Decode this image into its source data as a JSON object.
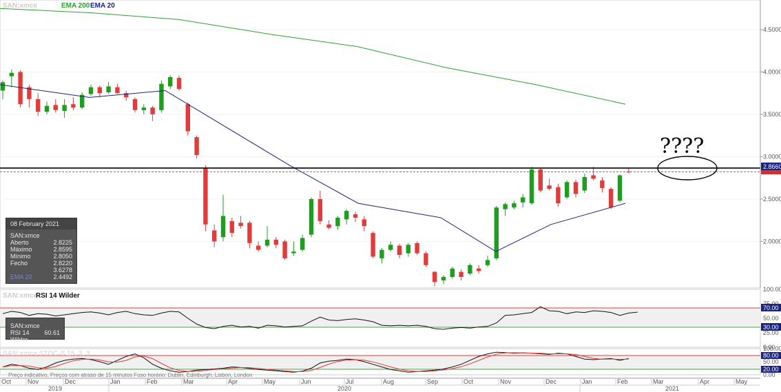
{
  "main_panel": {
    "symbol": "SAN:xmce",
    "legend": [
      {
        "label": "EMA 200",
        "color": "#2ca02c"
      },
      {
        "label": "EMA 20",
        "color": "#1a237e"
      }
    ],
    "y_ticks": [
      "4.5000",
      "4.0000",
      "3.5000",
      "3.0000",
      "2.5000",
      "2.0000"
    ],
    "current_price_label": "2.8660",
    "annotation_text": "????"
  },
  "info_box": {
    "date": "08 February 2021",
    "symbol": "SAN:xmce",
    "rows": [
      {
        "label": "Aberto",
        "value": "2.8225"
      },
      {
        "label": "Máximo",
        "value": "2.8595"
      },
      {
        "label": "Mínimo",
        "value": "2.8050"
      },
      {
        "label": "Fecho",
        "value": "2.8220"
      },
      {
        "label": "",
        "value": "3.6278"
      },
      {
        "label": "EMA 20",
        "value": "2.4492"
      }
    ]
  },
  "rsi_panel": {
    "symbol": "SAN:xmce",
    "title": "RSI 14 Wilder",
    "y_ticks": [
      "100.00",
      "75.00",
      "50.00",
      "25.00",
      "0.00"
    ],
    "level_labels": [
      "70.00",
      "30.00"
    ],
    "info_symbol": "SAN:xmce",
    "info_label": "RSI 14 Wilder",
    "info_value": "60.61"
  },
  "stoch_panel": {
    "title": "SAN:xmce  STOC-S 15, 3, 3",
    "y_ticks": [
      "100.00",
      "50.00",
      "0.00"
    ],
    "level_labels": [
      "80.00",
      "20.00"
    ]
  },
  "footer_note": "Preço indicativo. Preços com atraso de 15 minutos    Fuso horário: Dublin, Edinburgh, Lisbon, London",
  "x_axis": {
    "months": [
      "Oct",
      "Nov",
      "Dec",
      "Jan",
      "Feb",
      "Mar",
      "Apr",
      "May",
      "Jun",
      "Jul",
      "Aug",
      "Sep",
      "Oct",
      "Nov",
      "Dec",
      "Jan",
      "Feb",
      "Mar",
      "Apr",
      "May"
    ],
    "years": [
      "2019",
      "2020",
      "2021"
    ]
  },
  "chart_data": {
    "type": "candlestick",
    "title": "",
    "xlabel": "",
    "ylabel": "",
    "ylim": [
      1.45,
      4.85
    ],
    "horizontal_line": 2.866,
    "candles": [
      {
        "o": 3.78,
        "h": 3.9,
        "l": 3.68,
        "c": 3.88
      },
      {
        "o": 3.95,
        "h": 4.03,
        "l": 3.82,
        "c": 3.99
      },
      {
        "o": 4.0,
        "h": 4.02,
        "l": 3.58,
        "c": 3.62
      },
      {
        "o": 3.82,
        "h": 3.85,
        "l": 3.58,
        "c": 3.68
      },
      {
        "o": 3.68,
        "h": 3.75,
        "l": 3.48,
        "c": 3.53
      },
      {
        "o": 3.53,
        "h": 3.65,
        "l": 3.5,
        "c": 3.6
      },
      {
        "o": 3.61,
        "h": 3.68,
        "l": 3.52,
        "c": 3.55
      },
      {
        "o": 3.54,
        "h": 3.68,
        "l": 3.46,
        "c": 3.61
      },
      {
        "o": 3.62,
        "h": 3.7,
        "l": 3.55,
        "c": 3.58
      },
      {
        "o": 3.58,
        "h": 3.76,
        "l": 3.56,
        "c": 3.73
      },
      {
        "o": 3.74,
        "h": 3.85,
        "l": 3.72,
        "c": 3.82
      },
      {
        "o": 3.82,
        "h": 3.84,
        "l": 3.7,
        "c": 3.75
      },
      {
        "o": 3.76,
        "h": 3.88,
        "l": 3.74,
        "c": 3.83
      },
      {
        "o": 3.82,
        "h": 3.86,
        "l": 3.74,
        "c": 3.75
      },
      {
        "o": 3.75,
        "h": 3.78,
        "l": 3.66,
        "c": 3.7
      },
      {
        "o": 3.68,
        "h": 3.7,
        "l": 3.52,
        "c": 3.55
      },
      {
        "o": 3.55,
        "h": 3.62,
        "l": 3.5,
        "c": 3.58
      },
      {
        "o": 3.58,
        "h": 3.6,
        "l": 3.42,
        "c": 3.5
      },
      {
        "o": 3.55,
        "h": 3.9,
        "l": 3.52,
        "c": 3.86
      },
      {
        "o": 3.83,
        "h": 3.96,
        "l": 3.8,
        "c": 3.94
      },
      {
        "o": 3.93,
        "h": 3.96,
        "l": 3.78,
        "c": 3.8
      },
      {
        "o": 3.62,
        "h": 3.64,
        "l": 3.25,
        "c": 3.3
      },
      {
        "o": 3.23,
        "h": 3.25,
        "l": 2.98,
        "c": 3.02
      },
      {
        "o": 2.86,
        "h": 2.9,
        "l": 2.12,
        "c": 2.2
      },
      {
        "o": 2.13,
        "h": 2.2,
        "l": 1.93,
        "c": 2.0
      },
      {
        "o": 2.05,
        "h": 2.55,
        "l": 2.0,
        "c": 2.3
      },
      {
        "o": 2.24,
        "h": 2.28,
        "l": 2.05,
        "c": 2.1
      },
      {
        "o": 2.22,
        "h": 2.3,
        "l": 2.15,
        "c": 2.18
      },
      {
        "o": 2.22,
        "h": 2.24,
        "l": 1.92,
        "c": 1.98
      },
      {
        "o": 1.95,
        "h": 2.0,
        "l": 1.88,
        "c": 1.9
      },
      {
        "o": 1.95,
        "h": 2.18,
        "l": 1.93,
        "c": 2.02
      },
      {
        "o": 2.02,
        "h": 2.05,
        "l": 1.92,
        "c": 1.96
      },
      {
        "o": 2.0,
        "h": 2.02,
        "l": 1.78,
        "c": 1.8
      },
      {
        "o": 1.86,
        "h": 2.0,
        "l": 1.83,
        "c": 1.88
      },
      {
        "o": 1.9,
        "h": 2.08,
        "l": 1.88,
        "c": 2.04
      },
      {
        "o": 2.08,
        "h": 2.52,
        "l": 2.05,
        "c": 2.5
      },
      {
        "o": 2.5,
        "h": 2.6,
        "l": 2.2,
        "c": 2.24
      },
      {
        "o": 2.2,
        "h": 2.25,
        "l": 2.14,
        "c": 2.16
      },
      {
        "o": 2.18,
        "h": 2.3,
        "l": 2.14,
        "c": 2.28
      },
      {
        "o": 2.26,
        "h": 2.38,
        "l": 2.2,
        "c": 2.36
      },
      {
        "o": 2.32,
        "h": 2.35,
        "l": 2.23,
        "c": 2.28
      },
      {
        "o": 2.26,
        "h": 2.3,
        "l": 2.12,
        "c": 2.18
      },
      {
        "o": 2.1,
        "h": 2.12,
        "l": 1.8,
        "c": 1.82
      },
      {
        "o": 1.8,
        "h": 1.92,
        "l": 1.74,
        "c": 1.9
      },
      {
        "o": 1.9,
        "h": 2.0,
        "l": 1.88,
        "c": 1.96
      },
      {
        "o": 1.95,
        "h": 1.97,
        "l": 1.8,
        "c": 1.84
      },
      {
        "o": 1.86,
        "h": 1.98,
        "l": 1.82,
        "c": 1.96
      },
      {
        "o": 1.98,
        "h": 2.0,
        "l": 1.84,
        "c": 1.86
      },
      {
        "o": 1.86,
        "h": 1.88,
        "l": 1.7,
        "c": 1.72
      },
      {
        "o": 1.64,
        "h": 1.65,
        "l": 1.47,
        "c": 1.52
      },
      {
        "o": 1.54,
        "h": 1.6,
        "l": 1.5,
        "c": 1.58
      },
      {
        "o": 1.58,
        "h": 1.7,
        "l": 1.56,
        "c": 1.68
      },
      {
        "o": 1.64,
        "h": 1.67,
        "l": 1.54,
        "c": 1.58
      },
      {
        "o": 1.62,
        "h": 1.74,
        "l": 1.6,
        "c": 1.72
      },
      {
        "o": 1.68,
        "h": 1.72,
        "l": 1.62,
        "c": 1.65
      },
      {
        "o": 1.72,
        "h": 1.83,
        "l": 1.7,
        "c": 1.78
      },
      {
        "o": 1.8,
        "h": 2.42,
        "l": 1.78,
        "c": 2.4
      },
      {
        "o": 2.38,
        "h": 2.46,
        "l": 2.3,
        "c": 2.44
      },
      {
        "o": 2.4,
        "h": 2.48,
        "l": 2.38,
        "c": 2.45
      },
      {
        "o": 2.46,
        "h": 2.56,
        "l": 2.4,
        "c": 2.52
      },
      {
        "o": 2.45,
        "h": 2.88,
        "l": 2.43,
        "c": 2.85
      },
      {
        "o": 2.85,
        "h": 2.87,
        "l": 2.58,
        "c": 2.6
      },
      {
        "o": 2.66,
        "h": 2.74,
        "l": 2.6,
        "c": 2.62
      },
      {
        "o": 2.64,
        "h": 2.68,
        "l": 2.41,
        "c": 2.45
      },
      {
        "o": 2.52,
        "h": 2.72,
        "l": 2.5,
        "c": 2.7
      },
      {
        "o": 2.7,
        "h": 2.73,
        "l": 2.52,
        "c": 2.56
      },
      {
        "o": 2.6,
        "h": 2.8,
        "l": 2.57,
        "c": 2.76
      },
      {
        "o": 2.78,
        "h": 2.88,
        "l": 2.72,
        "c": 2.74
      },
      {
        "o": 2.72,
        "h": 2.76,
        "l": 2.58,
        "c": 2.63
      },
      {
        "o": 2.62,
        "h": 2.64,
        "l": 2.38,
        "c": 2.4
      },
      {
        "o": 2.48,
        "h": 2.79,
        "l": 2.46,
        "c": 2.78
      },
      {
        "o": 2.8225,
        "h": 2.8595,
        "l": 2.805,
        "c": 2.822
      }
    ],
    "series": [
      {
        "name": "EMA 200",
        "values": [
          4.75,
          4.7,
          4.62,
          4.45,
          4.3,
          4.05,
          3.85,
          3.62
        ]
      },
      {
        "name": "EMA 20",
        "values": [
          3.85,
          3.7,
          3.78,
          2.9,
          2.45,
          2.28,
          1.88,
          2.2,
          2.45
        ]
      }
    ],
    "rsi": {
      "name": "RSI 14 Wilder",
      "levels": [
        70,
        30
      ],
      "ylim": [
        0,
        100
      ],
      "last": 60.61
    },
    "stochastic": {
      "name": "STOC-S 15, 3, 3",
      "levels": [
        80,
        20
      ],
      "ylim": [
        0,
        100
      ]
    }
  }
}
